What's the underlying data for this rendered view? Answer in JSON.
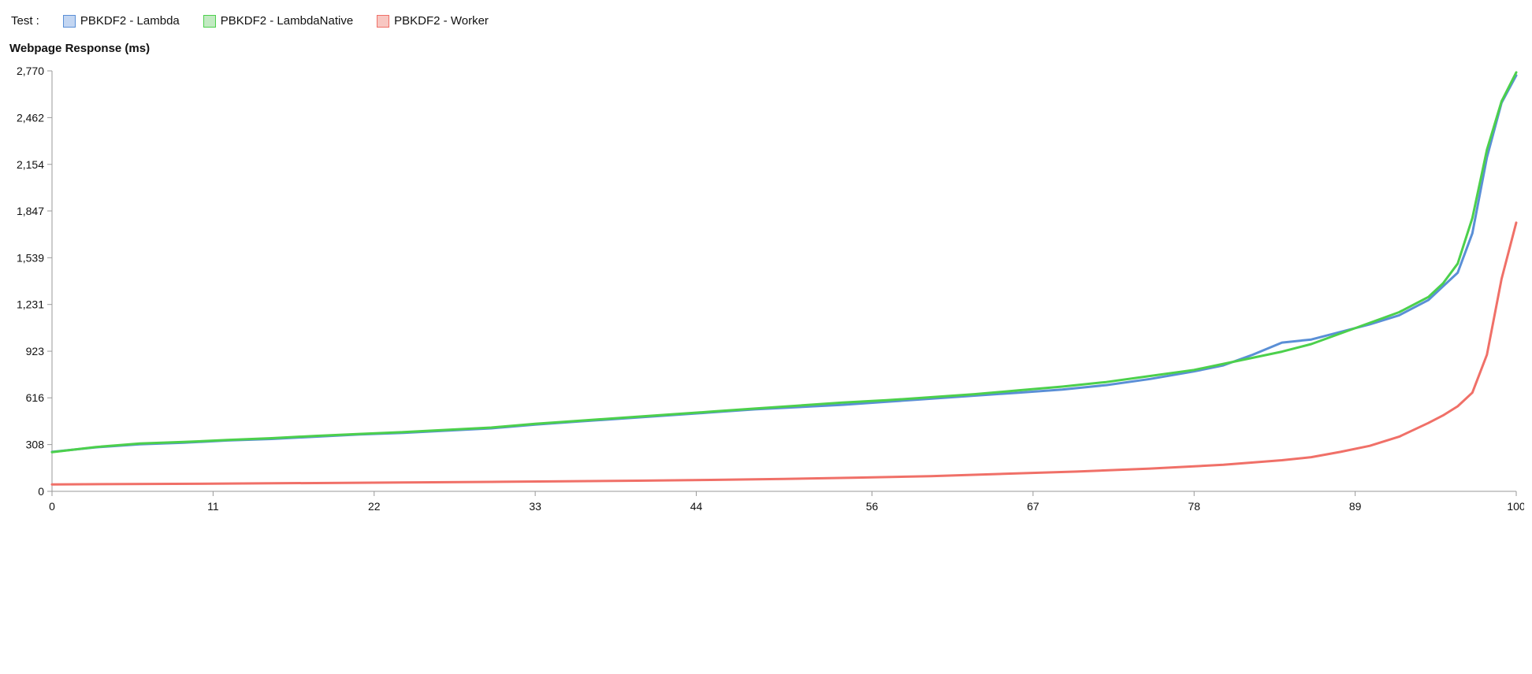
{
  "header": {
    "test_label": "Test :",
    "legend": [
      {
        "label": "PBKDF2 - Lambda",
        "fill": "#c3d6f2",
        "border": "#5a8fd6"
      },
      {
        "label": "PBKDF2 - LambdaNative",
        "fill": "#c2eac2",
        "border": "#4cd04c"
      },
      {
        "label": "PBKDF2 - Worker",
        "fill": "#f8c7c2",
        "border": "#f07068"
      }
    ]
  },
  "chart": {
    "type": "line",
    "y_title": "Webpage Response (ms)",
    "background_color": "#ffffff",
    "axis_color": "#999999",
    "tick_fontsize": 14,
    "title_fontsize": 15,
    "line_width": 3,
    "xlim": [
      0,
      100
    ],
    "ylim": [
      0,
      2770
    ],
    "xticks": [
      0,
      11,
      22,
      33,
      44,
      56,
      67,
      78,
      89,
      100
    ],
    "yticks": [
      0,
      308,
      616,
      923,
      1231,
      1539,
      1847,
      2154,
      2462,
      2770
    ],
    "series": [
      {
        "name": "PBKDF2 - Lambda",
        "color": "#5a8fd6",
        "data": [
          [
            0,
            260
          ],
          [
            3,
            290
          ],
          [
            6,
            310
          ],
          [
            9,
            320
          ],
          [
            12,
            335
          ],
          [
            15,
            345
          ],
          [
            18,
            360
          ],
          [
            21,
            375
          ],
          [
            24,
            385
          ],
          [
            27,
            400
          ],
          [
            30,
            415
          ],
          [
            33,
            440
          ],
          [
            36,
            460
          ],
          [
            39,
            480
          ],
          [
            42,
            500
          ],
          [
            45,
            520
          ],
          [
            48,
            540
          ],
          [
            51,
            555
          ],
          [
            54,
            570
          ],
          [
            57,
            590
          ],
          [
            60,
            610
          ],
          [
            63,
            630
          ],
          [
            66,
            650
          ],
          [
            69,
            670
          ],
          [
            72,
            700
          ],
          [
            75,
            740
          ],
          [
            78,
            790
          ],
          [
            80,
            830
          ],
          [
            82,
            900
          ],
          [
            84,
            980
          ],
          [
            86,
            1000
          ],
          [
            88,
            1050
          ],
          [
            90,
            1100
          ],
          [
            92,
            1160
          ],
          [
            94,
            1260
          ],
          [
            95,
            1350
          ],
          [
            96,
            1440
          ],
          [
            97,
            1700
          ],
          [
            98,
            2200
          ],
          [
            99,
            2560
          ],
          [
            100,
            2740
          ]
        ]
      },
      {
        "name": "PBKDF2 - LambdaNative",
        "color": "#4cd04c",
        "data": [
          [
            0,
            258
          ],
          [
            3,
            292
          ],
          [
            6,
            315
          ],
          [
            9,
            325
          ],
          [
            12,
            338
          ],
          [
            15,
            350
          ],
          [
            18,
            365
          ],
          [
            21,
            378
          ],
          [
            24,
            390
          ],
          [
            27,
            405
          ],
          [
            30,
            420
          ],
          [
            33,
            445
          ],
          [
            36,
            465
          ],
          [
            39,
            485
          ],
          [
            42,
            505
          ],
          [
            45,
            525
          ],
          [
            48,
            545
          ],
          [
            51,
            565
          ],
          [
            54,
            585
          ],
          [
            57,
            600
          ],
          [
            60,
            620
          ],
          [
            63,
            640
          ],
          [
            66,
            665
          ],
          [
            69,
            690
          ],
          [
            72,
            720
          ],
          [
            75,
            760
          ],
          [
            78,
            800
          ],
          [
            80,
            840
          ],
          [
            82,
            880
          ],
          [
            84,
            920
          ],
          [
            86,
            970
          ],
          [
            88,
            1040
          ],
          [
            90,
            1110
          ],
          [
            92,
            1180
          ],
          [
            94,
            1280
          ],
          [
            95,
            1370
          ],
          [
            96,
            1500
          ],
          [
            97,
            1800
          ],
          [
            98,
            2250
          ],
          [
            99,
            2570
          ],
          [
            100,
            2760
          ]
        ]
      },
      {
        "name": "PBKDF2 - Worker",
        "color": "#f07068",
        "data": [
          [
            0,
            45
          ],
          [
            5,
            48
          ],
          [
            10,
            50
          ],
          [
            15,
            53
          ],
          [
            20,
            56
          ],
          [
            25,
            59
          ],
          [
            30,
            62
          ],
          [
            35,
            66
          ],
          [
            40,
            70
          ],
          [
            45,
            75
          ],
          [
            50,
            82
          ],
          [
            55,
            90
          ],
          [
            60,
            100
          ],
          [
            65,
            115
          ],
          [
            70,
            130
          ],
          [
            75,
            150
          ],
          [
            78,
            165
          ],
          [
            80,
            175
          ],
          [
            82,
            190
          ],
          [
            84,
            205
          ],
          [
            86,
            225
          ],
          [
            88,
            260
          ],
          [
            90,
            300
          ],
          [
            92,
            360
          ],
          [
            94,
            450
          ],
          [
            95,
            500
          ],
          [
            96,
            560
          ],
          [
            97,
            650
          ],
          [
            98,
            900
          ],
          [
            99,
            1400
          ],
          [
            100,
            1770
          ]
        ]
      }
    ]
  }
}
